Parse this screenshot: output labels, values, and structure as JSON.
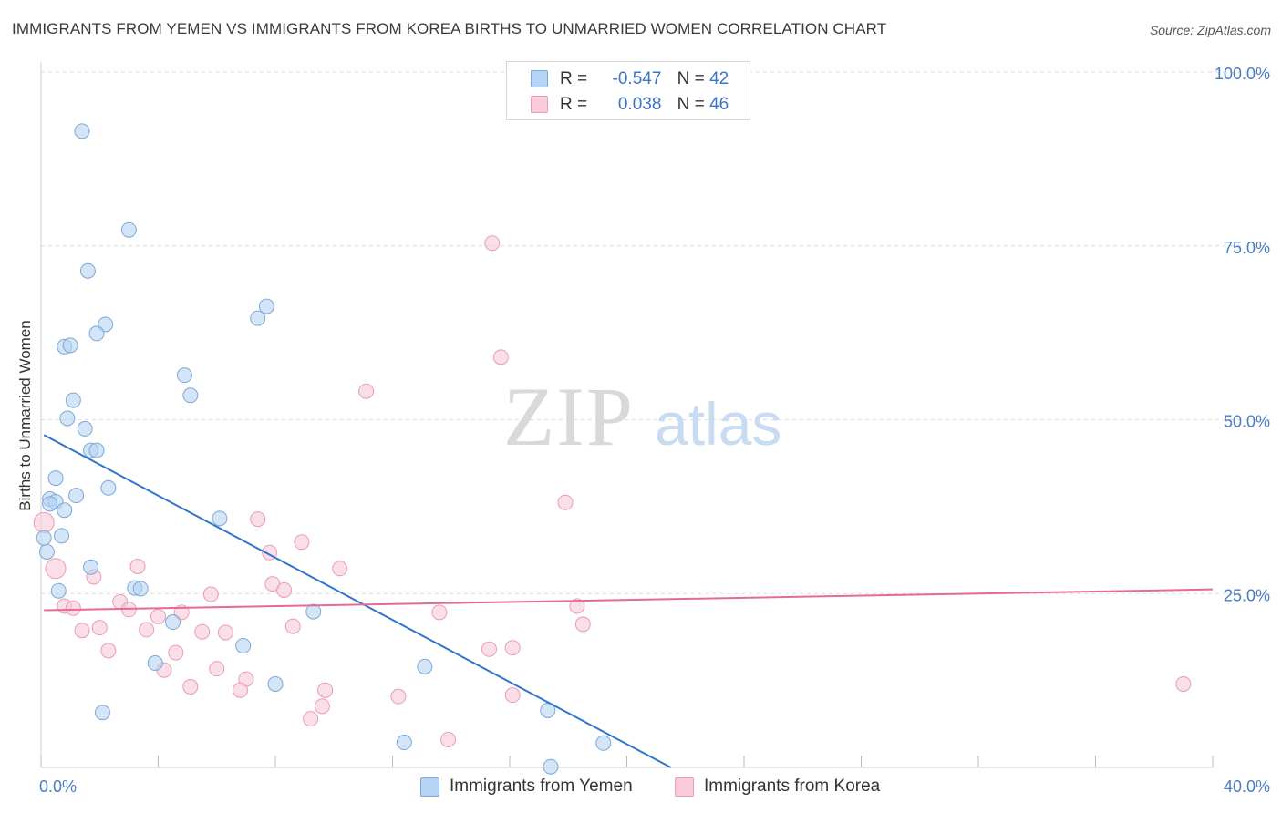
{
  "title": "IMMIGRANTS FROM YEMEN VS IMMIGRANTS FROM KOREA BIRTHS TO UNMARRIED WOMEN CORRELATION CHART",
  "source": "Source: ZipAtlas.com",
  "watermark": {
    "zip": "ZIP",
    "atlas": "atlas"
  },
  "legend": {
    "rows": [
      {
        "r_label": "R =",
        "r_value": "-0.547",
        "n_label": "N =",
        "n_value": "42"
      },
      {
        "r_label": "R =",
        "r_value": "0.038",
        "n_label": "N =",
        "n_value": "46"
      }
    ]
  },
  "colors": {
    "yemen_fill": "#b8d4f4",
    "yemen_stroke": "#7aa8dc",
    "yemen_line": "#2f74d0",
    "korea_fill": "#f9cad8",
    "korea_stroke": "#ec9bb4",
    "korea_line": "#e46b94",
    "grid": "#dddddd",
    "tick_text": "#4a7cc4"
  },
  "chart_data": {
    "type": "scatter",
    "title": "IMMIGRANTS FROM YEMEN VS IMMIGRANTS FROM KOREA BIRTHS TO UNMARRIED WOMEN CORRELATION CHART",
    "xlabel": "",
    "ylabel": "Births to Unmarried Women",
    "xlim": [
      0,
      40
    ],
    "ylim": [
      0,
      100
    ],
    "x_ticks": [
      "0.0%",
      "40.0%"
    ],
    "y_ticks": [
      {
        "value": 25,
        "label": "25.0%"
      },
      {
        "value": 50,
        "label": "50.0%"
      },
      {
        "value": 75,
        "label": "75.0%"
      },
      {
        "value": 100,
        "label": "100.0%"
      }
    ],
    "grid": true,
    "legend_position": "top-center",
    "series": [
      {
        "name": "Immigrants from Yemen",
        "r": -0.547,
        "n": 42,
        "trend": {
          "x": [
            0.1,
            21.5
          ],
          "y": [
            47.8,
            0.0
          ]
        },
        "points": [
          [
            1.4,
            91.5
          ],
          [
            3.0,
            77.3
          ],
          [
            1.6,
            71.4
          ],
          [
            7.4,
            64.6
          ],
          [
            7.7,
            66.3
          ],
          [
            2.2,
            63.7
          ],
          [
            1.9,
            62.4
          ],
          [
            0.8,
            60.5
          ],
          [
            1.0,
            60.7
          ],
          [
            4.9,
            56.4
          ],
          [
            5.1,
            53.5
          ],
          [
            1.1,
            52.8
          ],
          [
            0.9,
            50.2
          ],
          [
            1.5,
            48.7
          ],
          [
            1.7,
            45.6
          ],
          [
            1.9,
            45.6
          ],
          [
            0.5,
            41.6
          ],
          [
            2.3,
            40.2
          ],
          [
            1.2,
            39.1
          ],
          [
            0.3,
            38.6
          ],
          [
            0.5,
            38.2
          ],
          [
            0.3,
            37.9
          ],
          [
            0.8,
            37.0
          ],
          [
            6.1,
            35.8
          ],
          [
            0.7,
            33.3
          ],
          [
            0.1,
            33.0
          ],
          [
            0.2,
            31.0
          ],
          [
            1.7,
            28.8
          ],
          [
            0.6,
            25.4
          ],
          [
            3.2,
            25.8
          ],
          [
            3.4,
            25.7
          ],
          [
            9.3,
            22.4
          ],
          [
            4.5,
            20.9
          ],
          [
            6.9,
            17.5
          ],
          [
            3.9,
            15.0
          ],
          [
            13.1,
            14.5
          ],
          [
            8.0,
            12.0
          ],
          [
            2.1,
            7.9
          ],
          [
            17.3,
            8.2
          ],
          [
            12.4,
            3.6
          ],
          [
            19.2,
            3.5
          ],
          [
            17.4,
            0.1
          ]
        ]
      },
      {
        "name": "Immigrants from Korea",
        "r": 0.038,
        "n": 46,
        "trend": {
          "x": [
            0.1,
            40.0
          ],
          "y": [
            22.6,
            25.6
          ]
        },
        "points": [
          [
            15.4,
            75.4
          ],
          [
            15.7,
            59.0
          ],
          [
            11.1,
            54.1
          ],
          [
            17.9,
            38.1
          ],
          [
            0.1,
            35.2
          ],
          [
            7.4,
            35.7
          ],
          [
            8.9,
            32.4
          ],
          [
            7.8,
            30.9
          ],
          [
            0.5,
            28.6
          ],
          [
            3.3,
            28.9
          ],
          [
            10.2,
            28.6
          ],
          [
            1.8,
            27.4
          ],
          [
            7.9,
            26.4
          ],
          [
            8.3,
            25.5
          ],
          [
            5.8,
            24.9
          ],
          [
            2.7,
            23.8
          ],
          [
            0.8,
            23.2
          ],
          [
            1.1,
            22.9
          ],
          [
            3.0,
            22.7
          ],
          [
            18.3,
            23.2
          ],
          [
            4.0,
            21.7
          ],
          [
            13.6,
            22.3
          ],
          [
            4.8,
            22.3
          ],
          [
            8.6,
            20.3
          ],
          [
            2.0,
            20.1
          ],
          [
            1.4,
            19.7
          ],
          [
            3.6,
            19.8
          ],
          [
            5.5,
            19.5
          ],
          [
            6.3,
            19.4
          ],
          [
            18.5,
            20.6
          ],
          [
            16.1,
            17.2
          ],
          [
            15.3,
            17.0
          ],
          [
            4.6,
            16.5
          ],
          [
            2.3,
            16.8
          ],
          [
            4.2,
            14.0
          ],
          [
            6.0,
            14.2
          ],
          [
            7.0,
            12.7
          ],
          [
            5.1,
            11.6
          ],
          [
            6.8,
            11.1
          ],
          [
            9.7,
            11.1
          ],
          [
            12.2,
            10.2
          ],
          [
            16.1,
            10.4
          ],
          [
            9.6,
            8.8
          ],
          [
            9.2,
            7.0
          ],
          [
            13.9,
            4.0
          ],
          [
            39.0,
            12.0
          ]
        ]
      }
    ]
  }
}
